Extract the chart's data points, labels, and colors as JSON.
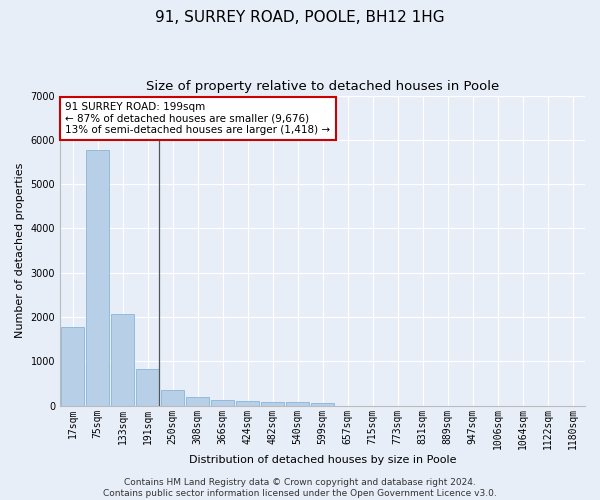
{
  "title": "91, SURREY ROAD, POOLE, BH12 1HG",
  "subtitle": "Size of property relative to detached houses in Poole",
  "xlabel": "Distribution of detached houses by size in Poole",
  "ylabel": "Number of detached properties",
  "categories": [
    "17sqm",
    "75sqm",
    "133sqm",
    "191sqm",
    "250sqm",
    "308sqm",
    "366sqm",
    "424sqm",
    "482sqm",
    "540sqm",
    "599sqm",
    "657sqm",
    "715sqm",
    "773sqm",
    "831sqm",
    "889sqm",
    "947sqm",
    "1006sqm",
    "1064sqm",
    "1122sqm",
    "1180sqm"
  ],
  "values": [
    1780,
    5780,
    2070,
    820,
    340,
    185,
    120,
    100,
    90,
    75,
    60,
    0,
    0,
    0,
    0,
    0,
    0,
    0,
    0,
    0,
    0
  ],
  "bar_color": "#b8cfe8",
  "bar_edge_color": "#7aacd4",
  "annotation_text": "91 SURREY ROAD: 199sqm\n← 87% of detached houses are smaller (9,676)\n13% of semi-detached houses are larger (1,418) →",
  "annotation_box_color": "#ffffff",
  "annotation_border_color": "#cc0000",
  "vline_bar_index": 3,
  "background_color": "#e8eef8",
  "grid_color": "#ffffff",
  "footer_line1": "Contains HM Land Registry data © Crown copyright and database right 2024.",
  "footer_line2": "Contains public sector information licensed under the Open Government Licence v3.0.",
  "ylim": [
    0,
    7000
  ],
  "yticks": [
    0,
    1000,
    2000,
    3000,
    4000,
    5000,
    6000,
    7000
  ],
  "title_fontsize": 11,
  "subtitle_fontsize": 9.5,
  "axis_label_fontsize": 8,
  "tick_fontsize": 7,
  "annotation_fontsize": 7.5,
  "footer_fontsize": 6.5
}
